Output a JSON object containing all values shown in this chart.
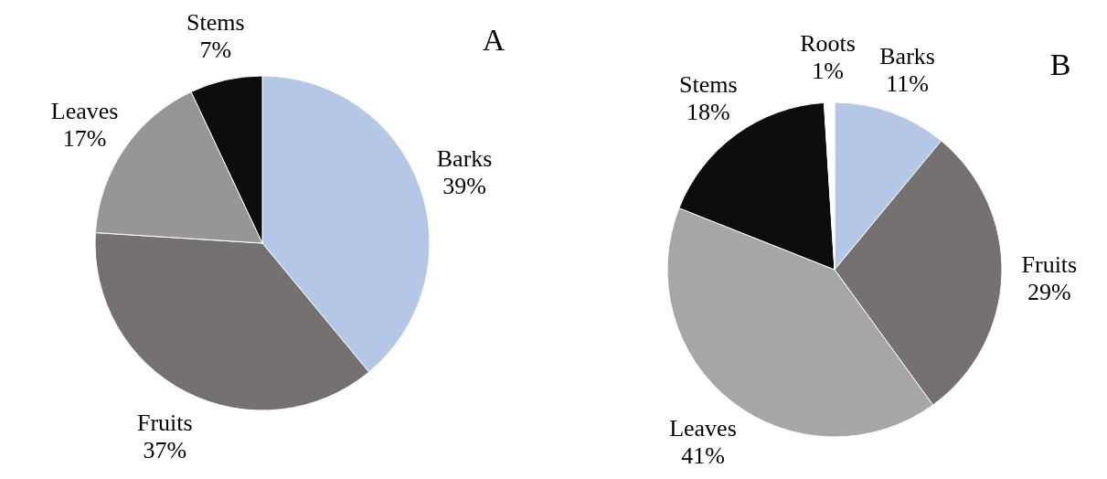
{
  "chart_data": [
    {
      "type": "pie",
      "title": "A",
      "categories": [
        "Barks",
        "Fruits",
        "Leaves",
        "Stems"
      ],
      "values": [
        39,
        37,
        17,
        7
      ],
      "value_labels": [
        "39%",
        "37%",
        "17%",
        "7%"
      ],
      "colors": [
        "#b4c7e7",
        "#767171",
        "#969696",
        "#0d0d0d"
      ]
    },
    {
      "type": "pie",
      "title": "B",
      "categories": [
        "Barks",
        "Fruits",
        "Leaves",
        "Stems",
        "Roots"
      ],
      "values": [
        11,
        29,
        41,
        18,
        1
      ],
      "value_labels": [
        "11%",
        "29%",
        "41%",
        "18%",
        "1%"
      ],
      "colors": [
        "#b4c7e7",
        "#767171",
        "#a6a6a6",
        "#0d0d0d",
        "#ffffff"
      ]
    }
  ]
}
